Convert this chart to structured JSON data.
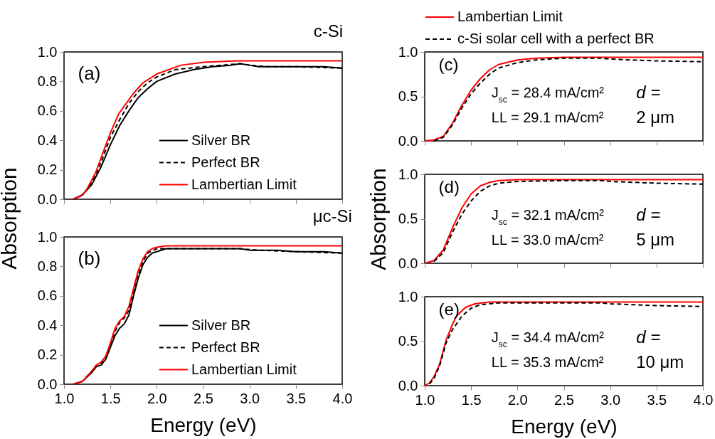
{
  "chart_data": [
    {
      "type": "line",
      "title": "c-Si",
      "ylabel": "Absorption",
      "annotations": [
        "(a)"
      ],
      "xlim": [
        1,
        4
      ],
      "ylim": [
        0,
        1
      ],
      "xticks": [
        {
          "value": 1,
          "label": null
        },
        {
          "value": 1.5,
          "label": null
        },
        {
          "value": 2,
          "label": null
        },
        {
          "value": 2.5,
          "label": null
        },
        {
          "value": 3,
          "label": null
        },
        {
          "value": 3.5,
          "label": null
        },
        {
          "value": 4,
          "label": null
        }
      ],
      "yticks": [
        {
          "value": 0,
          "label": "0.0"
        },
        {
          "value": 0.2,
          "label": "0.2"
        },
        {
          "value": 0.4,
          "label": "0.4"
        },
        {
          "value": 0.6,
          "label": "0.6"
        },
        {
          "value": 0.8,
          "label": "0.8"
        },
        {
          "value": 1,
          "label": "1.0"
        }
      ],
      "tick_labels": "y",
      "legend": "bottom right",
      "series": [
        {
          "name": "Silver BR",
          "color": "#000000",
          "line_style": "solid",
          "x": [
            1.1,
            1.2,
            1.3,
            1.4,
            1.5,
            1.6,
            1.7,
            1.8,
            1.9,
            2.0,
            2.2,
            2.4,
            2.6,
            2.8,
            2.9,
            3.0,
            3.1,
            3.2,
            3.3,
            3.5,
            3.8,
            4.0
          ],
          "values": [
            0,
            0.03,
            0.1,
            0.22,
            0.37,
            0.5,
            0.6,
            0.69,
            0.75,
            0.8,
            0.85,
            0.88,
            0.9,
            0.91,
            0.92,
            0.91,
            0.9,
            0.9,
            0.9,
            0.9,
            0.9,
            0.89
          ]
        },
        {
          "name": "Perfect BR",
          "color": "#000000",
          "line_style": "dashed",
          "x": [
            1.1,
            1.2,
            1.3,
            1.4,
            1.5,
            1.6,
            1.7,
            1.8,
            1.9,
            2.0,
            2.2,
            2.5,
            2.9,
            3.0,
            3.2,
            3.5,
            4.0
          ],
          "values": [
            0,
            0.03,
            0.11,
            0.25,
            0.42,
            0.54,
            0.65,
            0.73,
            0.79,
            0.83,
            0.88,
            0.9,
            0.92,
            0.91,
            0.9,
            0.9,
            0.89
          ]
        },
        {
          "name": "Lambertian Limit",
          "color": "#ff0000",
          "line_style": "solid",
          "x": [
            1.09,
            1.18,
            1.24,
            1.34,
            1.44,
            1.5,
            1.59,
            1.75,
            1.85,
            2.0,
            2.26,
            2.51,
            2.87,
            4.0
          ],
          "values": [
            0,
            0.02,
            0.06,
            0.18,
            0.35,
            0.45,
            0.58,
            0.72,
            0.79,
            0.85,
            0.91,
            0.93,
            0.94,
            0.94
          ]
        }
      ]
    },
    {
      "type": "line",
      "title": "μc-Si",
      "xlabel": "Energy (eV)",
      "annotations": [
        "(b)"
      ],
      "xlim": [
        1,
        4
      ],
      "ylim": [
        0,
        1
      ],
      "xticks": [
        {
          "value": 1,
          "label": "1.0"
        },
        {
          "value": 1.5,
          "label": "1.5"
        },
        {
          "value": 2,
          "label": "2.0"
        },
        {
          "value": 2.5,
          "label": "2.5"
        },
        {
          "value": 3,
          "label": "3.0"
        },
        {
          "value": 3.5,
          "label": "3.5"
        },
        {
          "value": 4,
          "label": "4.0"
        }
      ],
      "yticks": [
        {
          "value": 0,
          "label": "0.0"
        },
        {
          "value": 0.2,
          "label": "0.2"
        },
        {
          "value": 0.4,
          "label": "0.4"
        },
        {
          "value": 0.6,
          "label": "0.6"
        },
        {
          "value": 0.8,
          "label": "0.8"
        },
        {
          "value": 1,
          "label": "1.0"
        }
      ],
      "legend": "bottom right",
      "series": [
        {
          "name": "Silver BR",
          "color": "#000000",
          "line_style": "solid",
          "x": [
            1.1,
            1.2,
            1.3,
            1.35,
            1.4,
            1.45,
            1.5,
            1.55,
            1.6,
            1.65,
            1.7,
            1.75,
            1.8,
            1.85,
            1.9,
            1.95,
            2.0,
            2.1,
            2.2,
            2.5,
            2.7,
            2.9,
            3.0,
            3.1,
            3.2,
            3.3,
            3.5,
            3.8,
            4.0
          ],
          "values": [
            0,
            0.02,
            0.08,
            0.12,
            0.13,
            0.17,
            0.25,
            0.33,
            0.38,
            0.41,
            0.47,
            0.6,
            0.72,
            0.81,
            0.86,
            0.89,
            0.9,
            0.92,
            0.92,
            0.92,
            0.92,
            0.92,
            0.91,
            0.91,
            0.91,
            0.91,
            0.9,
            0.9,
            0.89
          ]
        },
        {
          "name": "Perfect BR",
          "color": "#000000",
          "line_style": "dashed",
          "x": [
            1.1,
            1.2,
            1.3,
            1.35,
            1.4,
            1.45,
            1.5,
            1.55,
            1.6,
            1.65,
            1.7,
            1.75,
            1.8,
            1.85,
            1.9,
            2.0,
            2.1,
            2.5,
            2.9,
            3.1,
            3.5,
            4.0
          ],
          "values": [
            0,
            0.02,
            0.09,
            0.13,
            0.14,
            0.19,
            0.26,
            0.36,
            0.42,
            0.45,
            0.5,
            0.62,
            0.74,
            0.83,
            0.89,
            0.92,
            0.92,
            0.92,
            0.92,
            0.91,
            0.9,
            0.89
          ]
        },
        {
          "name": "Lambertian Limit",
          "color": "#ff0000",
          "line_style": "solid",
          "x": [
            1.1,
            1.2,
            1.3,
            1.35,
            1.4,
            1.45,
            1.5,
            1.55,
            1.6,
            1.65,
            1.7,
            1.75,
            1.8,
            1.85,
            1.9,
            1.95,
            2.0,
            2.1,
            4.0
          ],
          "values": [
            0,
            0.02,
            0.09,
            0.13,
            0.15,
            0.19,
            0.28,
            0.38,
            0.43,
            0.46,
            0.53,
            0.65,
            0.77,
            0.85,
            0.9,
            0.92,
            0.93,
            0.94,
            0.94
          ]
        }
      ]
    },
    {
      "type": "line",
      "annotations": [
        "(c)",
        "J$_{sc}$ = 28.4 mA/cm²",
        "LL = 29.1 mA/cm²",
        "d =",
        "2 μm"
      ],
      "xlim": [
        1,
        4
      ],
      "ylim": [
        0,
        1
      ],
      "xticks": [
        {
          "value": 1,
          "label": null
        },
        {
          "value": 1.5,
          "label": null
        },
        {
          "value": 2,
          "label": null
        },
        {
          "value": 2.5,
          "label": null
        },
        {
          "value": 3,
          "label": null
        },
        {
          "value": 3.5,
          "label": null
        },
        {
          "value": 4,
          "label": null
        }
      ],
      "yticks": [
        {
          "value": 0,
          "label": "0.0"
        },
        {
          "value": 0.5,
          "label": "0.5"
        },
        {
          "value": 1,
          "label": "1.0"
        }
      ],
      "tick_labels": "y",
      "legend": "top",
      "series": [
        {
          "name": "Lambertian Limit",
          "color": "#ff0000",
          "line_style": "solid",
          "x": [
            1.0,
            1.1,
            1.2,
            1.3,
            1.4,
            1.5,
            1.6,
            1.7,
            1.8,
            2.0,
            2.2,
            2.5,
            4.0
          ],
          "values": [
            0,
            0.01,
            0.05,
            0.2,
            0.4,
            0.57,
            0.7,
            0.8,
            0.86,
            0.91,
            0.93,
            0.94,
            0.94
          ]
        },
        {
          "name": "c-Si solar cell with a perfect BR",
          "color": "#000000",
          "line_style": "dashed",
          "x": [
            1.1,
            1.2,
            1.3,
            1.4,
            1.5,
            1.6,
            1.7,
            1.8,
            2.0,
            2.2,
            2.5,
            2.9,
            3.0,
            3.2,
            3.5,
            4.0
          ],
          "values": [
            0,
            0.04,
            0.18,
            0.37,
            0.53,
            0.65,
            0.75,
            0.82,
            0.88,
            0.91,
            0.93,
            0.93,
            0.92,
            0.91,
            0.9,
            0.89
          ]
        }
      ]
    },
    {
      "type": "line",
      "ylabel": "Absorption",
      "annotations": [
        "(d)",
        "J$_{sc}$ = 32.1 mA/cm²",
        "LL = 33.0 mA/cm²",
        "d =",
        "5 μm"
      ],
      "xlim": [
        1,
        4
      ],
      "ylim": [
        0,
        1
      ],
      "xticks": [
        {
          "value": 1,
          "label": null
        },
        {
          "value": 1.5,
          "label": null
        },
        {
          "value": 2,
          "label": null
        },
        {
          "value": 2.5,
          "label": null
        },
        {
          "value": 3,
          "label": null
        },
        {
          "value": 3.5,
          "label": null
        },
        {
          "value": 4,
          "label": null
        }
      ],
      "yticks": [
        {
          "value": 0,
          "label": "0.0"
        },
        {
          "value": 0.5,
          "label": "0.5"
        },
        {
          "value": 1,
          "label": "1.0"
        }
      ],
      "tick_labels": "y",
      "series": [
        {
          "color": "#ff0000",
          "line_style": "solid",
          "x": [
            1.0,
            1.1,
            1.2,
            1.3,
            1.4,
            1.5,
            1.6,
            1.7,
            1.8,
            2.0,
            4.0
          ],
          "values": [
            0,
            0.03,
            0.15,
            0.4,
            0.62,
            0.78,
            0.87,
            0.91,
            0.93,
            0.94,
            0.94
          ]
        },
        {
          "color": "#000000",
          "line_style": "dashed",
          "x": [
            1.1,
            1.2,
            1.3,
            1.4,
            1.5,
            1.6,
            1.7,
            1.8,
            2.0,
            2.5,
            2.9,
            3.0,
            3.5,
            4.0
          ],
          "values": [
            0.02,
            0.12,
            0.35,
            0.55,
            0.7,
            0.81,
            0.87,
            0.9,
            0.92,
            0.93,
            0.93,
            0.92,
            0.9,
            0.89
          ]
        }
      ]
    },
    {
      "type": "line",
      "xlabel": "Energy (eV)",
      "annotations": [
        "(e)",
        "J$_{sc}$ = 34.4 mA/cm²",
        "LL = 35.3 mA/cm²",
        "d =",
        "10 μm"
      ],
      "xlim": [
        1,
        4
      ],
      "ylim": [
        0,
        1
      ],
      "xticks": [
        {
          "value": 1,
          "label": "1.0"
        },
        {
          "value": 1.5,
          "label": "1.5"
        },
        {
          "value": 2,
          "label": "2.0"
        },
        {
          "value": 2.5,
          "label": "2.5"
        },
        {
          "value": 3,
          "label": "3.0"
        },
        {
          "value": 3.5,
          "label": "3.5"
        },
        {
          "value": 4,
          "label": "4.0"
        }
      ],
      "yticks": [
        {
          "value": 0,
          "label": "0.0"
        },
        {
          "value": 0.5,
          "label": "0.5"
        },
        {
          "value": 1,
          "label": "1.0"
        }
      ],
      "series": [
        {
          "color": "#ff0000",
          "line_style": "solid",
          "x": [
            1.0,
            1.05,
            1.1,
            1.16,
            1.23,
            1.3,
            1.34,
            1.44,
            1.54,
            1.7,
            4.0
          ],
          "values": [
            0,
            0.03,
            0.1,
            0.24,
            0.51,
            0.69,
            0.78,
            0.88,
            0.92,
            0.94,
            0.94
          ]
        },
        {
          "color": "#000000",
          "line_style": "dashed",
          "x": [
            1.05,
            1.1,
            1.16,
            1.23,
            1.3,
            1.4,
            1.5,
            1.6,
            1.8,
            2.5,
            2.9,
            3.0,
            3.5,
            4.0
          ],
          "values": [
            0.02,
            0.08,
            0.22,
            0.48,
            0.63,
            0.78,
            0.87,
            0.91,
            0.93,
            0.93,
            0.93,
            0.92,
            0.9,
            0.89
          ]
        }
      ]
    }
  ]
}
